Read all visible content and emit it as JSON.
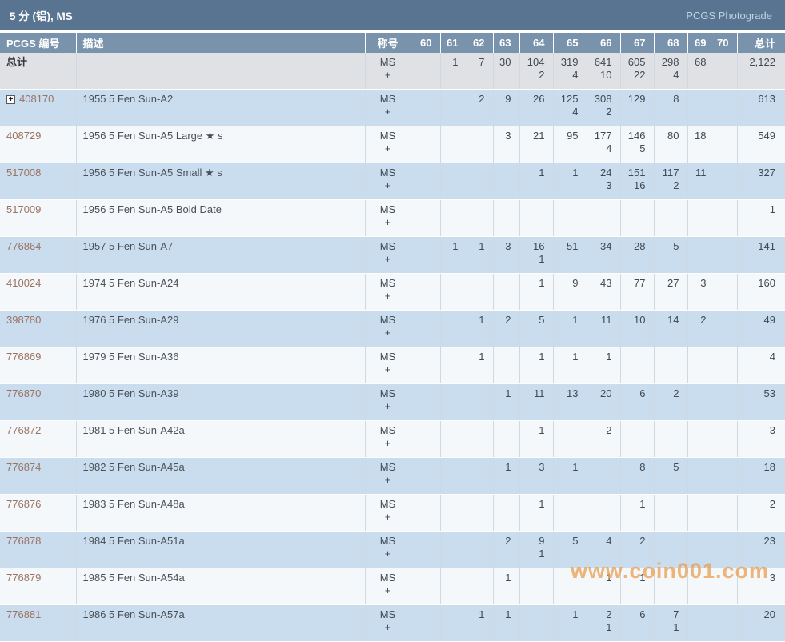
{
  "page": {
    "title": "5 分 (铝), MS",
    "photograde_link": "PCGS Photograde"
  },
  "watermark": "www.coin001.com",
  "colors": {
    "title_bar": "#587490",
    "header_row": "#7893ab",
    "totals_row_bg": "#dfe1e4",
    "row_blue": "#c9ddee",
    "row_light": "#f4f8fb",
    "pcgs_link": "#9b7262",
    "watermark_orange": "#e9a054"
  },
  "table": {
    "columns": [
      "PCGS 编号",
      "描述",
      "称号",
      "60",
      "61",
      "62",
      "63",
      "64",
      "65",
      "66",
      "67",
      "68",
      "69",
      "70",
      "总计"
    ],
    "totals_row": {
      "label": "总计",
      "designation": [
        "MS",
        "+"
      ],
      "grades": [
        [
          "",
          ""
        ],
        [
          "1",
          ""
        ],
        [
          "7",
          ""
        ],
        [
          "30",
          ""
        ],
        [
          "104",
          "2"
        ],
        [
          "319",
          "4"
        ],
        [
          "641",
          "10"
        ],
        [
          "605",
          "22"
        ],
        [
          "298",
          "4"
        ],
        [
          "68",
          ""
        ],
        [
          "",
          ""
        ]
      ],
      "total": "2,122"
    },
    "rows": [
      {
        "pcgs_number": "408170",
        "expandable": true,
        "description": "1955 5 Fen Sun-A2",
        "designation": [
          "MS",
          "+"
        ],
        "grades": [
          [
            "",
            ""
          ],
          [
            "",
            ""
          ],
          [
            "2",
            ""
          ],
          [
            "9",
            ""
          ],
          [
            "26",
            ""
          ],
          [
            "125",
            "4"
          ],
          [
            "308",
            "2"
          ],
          [
            "129",
            ""
          ],
          [
            "8",
            ""
          ],
          [
            "",
            ""
          ],
          [
            "",
            ""
          ]
        ],
        "total": "613"
      },
      {
        "pcgs_number": "408729",
        "expandable": false,
        "description": "1956 5 Fen Sun-A5 Large ★ s",
        "designation": [
          "MS",
          "+"
        ],
        "grades": [
          [
            "",
            ""
          ],
          [
            "",
            ""
          ],
          [
            "",
            ""
          ],
          [
            "3",
            ""
          ],
          [
            "21",
            ""
          ],
          [
            "95",
            ""
          ],
          [
            "177",
            "4"
          ],
          [
            "146",
            "5"
          ],
          [
            "80",
            ""
          ],
          [
            "18",
            ""
          ],
          [
            "",
            ""
          ]
        ],
        "total": "549"
      },
      {
        "pcgs_number": "517008",
        "expandable": false,
        "description": "1956 5 Fen Sun-A5 Small ★ s",
        "designation": [
          "MS",
          "+"
        ],
        "grades": [
          [
            "",
            ""
          ],
          [
            "",
            ""
          ],
          [
            "",
            ""
          ],
          [
            "",
            ""
          ],
          [
            "1",
            ""
          ],
          [
            "1",
            ""
          ],
          [
            "24",
            "3"
          ],
          [
            "151",
            "16"
          ],
          [
            "117",
            "2"
          ],
          [
            "11",
            ""
          ],
          [
            "",
            ""
          ]
        ],
        "total": "327"
      },
      {
        "pcgs_number": "517009",
        "expandable": false,
        "description": "1956 5 Fen Sun-A5 Bold Date",
        "designation": [
          "MS",
          "+"
        ],
        "grades": [
          [
            "",
            ""
          ],
          [
            "",
            ""
          ],
          [
            "",
            ""
          ],
          [
            "",
            ""
          ],
          [
            "",
            ""
          ],
          [
            "",
            ""
          ],
          [
            "",
            ""
          ],
          [
            "",
            ""
          ],
          [
            "",
            ""
          ],
          [
            "",
            ""
          ],
          [
            "",
            ""
          ]
        ],
        "total": "1"
      },
      {
        "pcgs_number": "776864",
        "expandable": false,
        "description": "1957 5 Fen Sun-A7",
        "designation": [
          "MS",
          "+"
        ],
        "grades": [
          [
            "",
            ""
          ],
          [
            "1",
            ""
          ],
          [
            "1",
            ""
          ],
          [
            "3",
            ""
          ],
          [
            "16",
            "1"
          ],
          [
            "51",
            ""
          ],
          [
            "34",
            ""
          ],
          [
            "28",
            ""
          ],
          [
            "5",
            ""
          ],
          [
            "",
            ""
          ],
          [
            "",
            ""
          ]
        ],
        "total": "141"
      },
      {
        "pcgs_number": "410024",
        "expandable": false,
        "description": "1974 5 Fen Sun-A24",
        "designation": [
          "MS",
          "+"
        ],
        "grades": [
          [
            "",
            ""
          ],
          [
            "",
            ""
          ],
          [
            "",
            ""
          ],
          [
            "",
            ""
          ],
          [
            "1",
            ""
          ],
          [
            "9",
            ""
          ],
          [
            "43",
            ""
          ],
          [
            "77",
            ""
          ],
          [
            "27",
            ""
          ],
          [
            "3",
            ""
          ],
          [
            "",
            ""
          ]
        ],
        "total": "160"
      },
      {
        "pcgs_number": "398780",
        "expandable": false,
        "description": "1976 5 Fen Sun-A29",
        "designation": [
          "MS",
          "+"
        ],
        "grades": [
          [
            "",
            ""
          ],
          [
            "",
            ""
          ],
          [
            "1",
            ""
          ],
          [
            "2",
            ""
          ],
          [
            "5",
            ""
          ],
          [
            "1",
            ""
          ],
          [
            "11",
            ""
          ],
          [
            "10",
            ""
          ],
          [
            "14",
            ""
          ],
          [
            "2",
            ""
          ],
          [
            "",
            ""
          ]
        ],
        "total": "49"
      },
      {
        "pcgs_number": "776869",
        "expandable": false,
        "description": "1979 5 Fen Sun-A36",
        "designation": [
          "MS",
          "+"
        ],
        "grades": [
          [
            "",
            ""
          ],
          [
            "",
            ""
          ],
          [
            "1",
            ""
          ],
          [
            "",
            ""
          ],
          [
            "1",
            ""
          ],
          [
            "1",
            ""
          ],
          [
            "1",
            ""
          ],
          [
            "",
            ""
          ],
          [
            "",
            ""
          ],
          [
            "",
            ""
          ],
          [
            "",
            ""
          ]
        ],
        "total": "4"
      },
      {
        "pcgs_number": "776870",
        "expandable": false,
        "description": "1980 5 Fen Sun-A39",
        "designation": [
          "MS",
          "+"
        ],
        "grades": [
          [
            "",
            ""
          ],
          [
            "",
            ""
          ],
          [
            "",
            ""
          ],
          [
            "1",
            ""
          ],
          [
            "11",
            ""
          ],
          [
            "13",
            ""
          ],
          [
            "20",
            ""
          ],
          [
            "6",
            ""
          ],
          [
            "2",
            ""
          ],
          [
            "",
            ""
          ],
          [
            "",
            ""
          ]
        ],
        "total": "53"
      },
      {
        "pcgs_number": "776872",
        "expandable": false,
        "description": "1981 5 Fen Sun-A42a",
        "designation": [
          "MS",
          "+"
        ],
        "grades": [
          [
            "",
            ""
          ],
          [
            "",
            ""
          ],
          [
            "",
            ""
          ],
          [
            "",
            ""
          ],
          [
            "1",
            ""
          ],
          [
            "",
            ""
          ],
          [
            "2",
            ""
          ],
          [
            "",
            ""
          ],
          [
            "",
            ""
          ],
          [
            "",
            ""
          ],
          [
            "",
            ""
          ]
        ],
        "total": "3"
      },
      {
        "pcgs_number": "776874",
        "expandable": false,
        "description": "1982 5 Fen Sun-A45a",
        "designation": [
          "MS",
          "+"
        ],
        "grades": [
          [
            "",
            ""
          ],
          [
            "",
            ""
          ],
          [
            "",
            ""
          ],
          [
            "1",
            ""
          ],
          [
            "3",
            ""
          ],
          [
            "1",
            ""
          ],
          [
            "",
            ""
          ],
          [
            "8",
            ""
          ],
          [
            "5",
            ""
          ],
          [
            "",
            ""
          ],
          [
            "",
            ""
          ]
        ],
        "total": "18"
      },
      {
        "pcgs_number": "776876",
        "expandable": false,
        "description": "1983 5 Fen Sun-A48a",
        "designation": [
          "MS",
          "+"
        ],
        "grades": [
          [
            "",
            ""
          ],
          [
            "",
            ""
          ],
          [
            "",
            ""
          ],
          [
            "",
            ""
          ],
          [
            "1",
            ""
          ],
          [
            "",
            ""
          ],
          [
            "",
            ""
          ],
          [
            "1",
            ""
          ],
          [
            "",
            ""
          ],
          [
            "",
            ""
          ],
          [
            "",
            ""
          ]
        ],
        "total": "2"
      },
      {
        "pcgs_number": "776878",
        "expandable": false,
        "description": "1984 5 Fen Sun-A51a",
        "designation": [
          "MS",
          "+"
        ],
        "grades": [
          [
            "",
            ""
          ],
          [
            "",
            ""
          ],
          [
            "",
            ""
          ],
          [
            "2",
            ""
          ],
          [
            "9",
            "1"
          ],
          [
            "5",
            ""
          ],
          [
            "4",
            ""
          ],
          [
            "2",
            ""
          ],
          [
            "",
            ""
          ],
          [
            "",
            ""
          ],
          [
            "",
            ""
          ]
        ],
        "total": "23"
      },
      {
        "pcgs_number": "776879",
        "expandable": false,
        "description": "1985 5 Fen Sun-A54a",
        "designation": [
          "MS",
          "+"
        ],
        "grades": [
          [
            "",
            ""
          ],
          [
            "",
            ""
          ],
          [
            "",
            ""
          ],
          [
            "1",
            ""
          ],
          [
            "",
            ""
          ],
          [
            "",
            ""
          ],
          [
            "1",
            ""
          ],
          [
            "1",
            ""
          ],
          [
            "",
            ""
          ],
          [
            "",
            ""
          ],
          [
            "",
            ""
          ]
        ],
        "total": "3"
      },
      {
        "pcgs_number": "776881",
        "expandable": false,
        "description": "1986 5 Fen Sun-A57a",
        "designation": [
          "MS",
          "+"
        ],
        "grades": [
          [
            "",
            ""
          ],
          [
            "",
            ""
          ],
          [
            "1",
            ""
          ],
          [
            "1",
            ""
          ],
          [
            "",
            ""
          ],
          [
            "1",
            ""
          ],
          [
            "2",
            "1"
          ],
          [
            "6",
            ""
          ],
          [
            "7",
            "1"
          ],
          [
            "",
            ""
          ],
          [
            "",
            ""
          ]
        ],
        "total": "20"
      }
    ]
  }
}
